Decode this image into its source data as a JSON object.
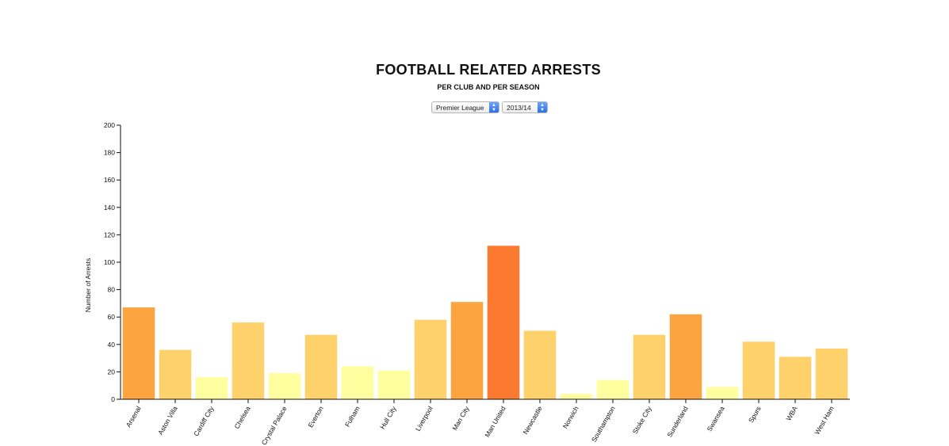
{
  "header": {
    "title": "FOOTBALL RELATED ARRESTS",
    "subtitle": "PER CLUB AND PER SEASON"
  },
  "controls": {
    "league": {
      "selected": "Premier League"
    },
    "season": {
      "selected": "2013/14"
    }
  },
  "chart_data": {
    "type": "bar",
    "ylabel": "Number of Arrests",
    "xlabel": "",
    "ylim": [
      0,
      200
    ],
    "yticks": [
      "0",
      "20",
      "40",
      "60",
      "80",
      "100",
      "120",
      "140",
      "160",
      "180",
      "200"
    ],
    "categories": [
      "Arsenal",
      "Aston Villa",
      "Cardiff City",
      "Chelsea",
      "Crystal Palace",
      "Everton",
      "Fulham",
      "Hull City",
      "Liverpool",
      "Man City",
      "Man United",
      "Newcastle",
      "Norwich",
      "Southampton",
      "Stoke City",
      "Sunderland",
      "Swansea",
      "Spurs",
      "WBA",
      "West Ham"
    ],
    "values": [
      67,
      36,
      16,
      56,
      19,
      47,
      24,
      21,
      58,
      71,
      112,
      50,
      4,
      14,
      47,
      62,
      9,
      42,
      31,
      37
    ],
    "colors": [
      "#fca43f",
      "#fed16a",
      "#ffff9f",
      "#fed16a",
      "#ffff9f",
      "#fed16a",
      "#ffff9f",
      "#ffff9f",
      "#fed16a",
      "#fca43f",
      "#fc7a2f",
      "#fed16a",
      "#ffff9f",
      "#ffff9f",
      "#fed16a",
      "#fca43f",
      "#ffff9f",
      "#fed16a",
      "#fed16a",
      "#fed16a"
    ],
    "grid": false,
    "legend": "none"
  }
}
